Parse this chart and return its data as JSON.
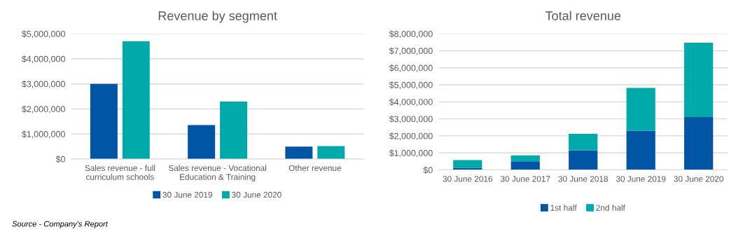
{
  "chart_data": [
    {
      "type": "bar",
      "title": "Revenue by segment",
      "categories": [
        "Sales revenue - full\ncurriculum schools",
        "Sales revenue - Vocational\nEducation & Training",
        "Other revenue"
      ],
      "series": [
        {
          "name": "30 June 2019",
          "color": "#0055a5",
          "values": [
            3000000,
            1360000,
            500000
          ]
        },
        {
          "name": "30 June 2020",
          "color": "#00aaaa",
          "values": [
            4700000,
            2290000,
            520000
          ]
        }
      ],
      "ylim": [
        0,
        5000000
      ],
      "yticks": [
        {
          "value": 0,
          "label": "$0"
        },
        {
          "value": 1000000,
          "label": "$1,000,000"
        },
        {
          "value": 2000000,
          "label": "$2,000,000"
        },
        {
          "value": 3000000,
          "label": "$3,000,000"
        },
        {
          "value": 4000000,
          "label": "$4,000,000"
        },
        {
          "value": 5000000,
          "label": "$5,000,000"
        }
      ],
      "grid": "y",
      "legend": "bottom",
      "annotations": [
        "Source - Company's Report"
      ]
    },
    {
      "type": "bar",
      "title": "Total revenue",
      "categories": [
        "30 June 2016",
        "30 June 2017",
        "30 June 2018",
        "30 June 2019",
        "30 June 2020"
      ],
      "stacked": true,
      "series": [
        {
          "name": "1st half",
          "color": "#0055a5",
          "values": [
            120000,
            510000,
            1150000,
            2310000,
            3110000
          ]
        },
        {
          "name": "2nd half",
          "color": "#00aaaa",
          "values": [
            460000,
            340000,
            970000,
            2510000,
            4360000
          ]
        }
      ],
      "ylim": [
        0,
        8000000
      ],
      "yticks": [
        {
          "value": 0,
          "label": "$0"
        },
        {
          "value": 1000000,
          "label": "$1,000,000"
        },
        {
          "value": 2000000,
          "label": "$2,000,000"
        },
        {
          "value": 3000000,
          "label": "$3,000,000"
        },
        {
          "value": 4000000,
          "label": "$4,000,000"
        },
        {
          "value": 5000000,
          "label": "$5,000,000"
        },
        {
          "value": 6000000,
          "label": "$6,000,000"
        },
        {
          "value": 7000000,
          "label": "$7,000,000"
        },
        {
          "value": 8000000,
          "label": "$8,000,000"
        }
      ],
      "grid": "y",
      "legend": "bottom"
    }
  ]
}
